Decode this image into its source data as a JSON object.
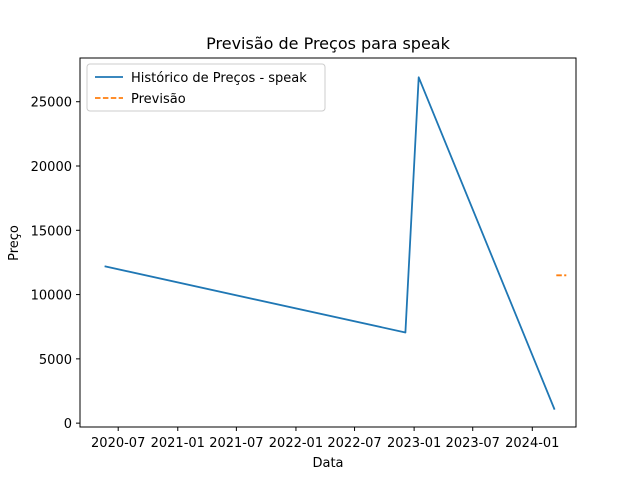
{
  "chart_data": {
    "type": "line",
    "title": "Previsão de Preços para speak",
    "xlabel": "Data",
    "ylabel": "Preço",
    "x_ticks": [
      "2020-07",
      "2021-01",
      "2021-07",
      "2022-01",
      "2022-07",
      "2023-01",
      "2023-07",
      "2024-01"
    ],
    "xlim": [
      "2020-03-05",
      "2024-05-15"
    ],
    "ylim": [
      -300,
      28400
    ],
    "y_ticks": [
      0,
      5000,
      10000,
      15000,
      20000,
      25000
    ],
    "grid": false,
    "legend_location": "upper left",
    "series": [
      {
        "name": "Histórico de Preços - speak",
        "style": "solid",
        "color": "#1f77b4",
        "x": [
          "2020-05-20",
          "2022-12-05",
          "2023-01-15",
          "2024-03-10"
        ],
        "y": [
          12200,
          7050,
          26900,
          1050
        ]
      },
      {
        "name": "Previsão",
        "style": "dashed",
        "color": "#ff7f0e",
        "x": [
          "2024-03-15",
          "2024-04-15"
        ],
        "y": [
          11500,
          11500
        ]
      }
    ]
  }
}
